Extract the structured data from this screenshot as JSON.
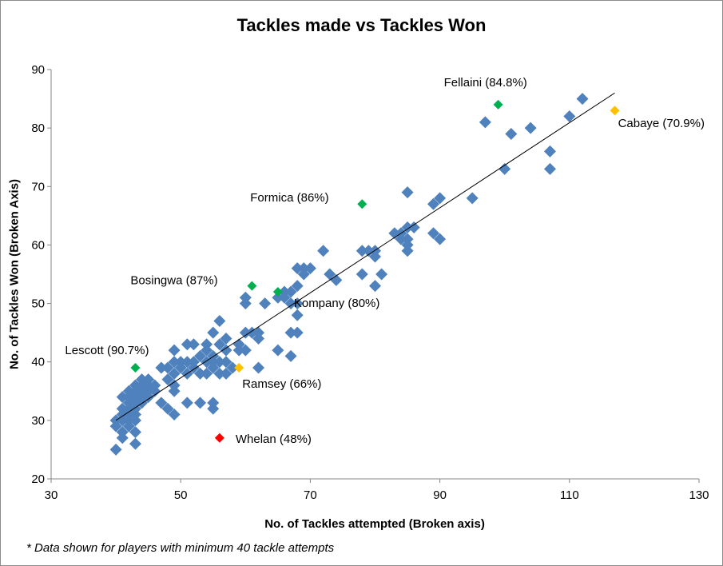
{
  "chart_data": {
    "type": "scatter",
    "title": "Tackles made vs Tackles Won",
    "xlabel": "No. of Tackles attempted (Broken axis)",
    "ylabel": "No. of Tackles Won (Broken Axis)",
    "footnote": "* Data shown for players with minimum 40 tackle attempts",
    "xlim": [
      30,
      130
    ],
    "ylim": [
      20,
      90
    ],
    "x_ticks": [
      30,
      50,
      70,
      90,
      110,
      130
    ],
    "y_ticks": [
      20,
      30,
      40,
      50,
      60,
      70,
      80,
      90
    ],
    "grid": false,
    "colors": {
      "points": "#4f81bd",
      "green": "#00b050",
      "orange": "#ffc000",
      "red": "#ff0000",
      "trendline": "#000000"
    },
    "trendline": {
      "x": [
        40,
        117
      ],
      "y": [
        30,
        86
      ]
    },
    "points": [
      [
        40,
        25
      ],
      [
        40,
        29
      ],
      [
        40,
        30
      ],
      [
        41,
        27
      ],
      [
        41,
        28
      ],
      [
        41,
        30
      ],
      [
        41,
        31
      ],
      [
        41,
        32
      ],
      [
        41,
        34
      ],
      [
        42,
        29
      ],
      [
        42,
        30
      ],
      [
        42,
        31
      ],
      [
        42,
        32
      ],
      [
        42,
        33
      ],
      [
        42,
        34
      ],
      [
        42,
        35
      ],
      [
        43,
        26
      ],
      [
        43,
        28
      ],
      [
        43,
        30
      ],
      [
        43,
        31
      ],
      [
        43,
        32
      ],
      [
        43,
        33
      ],
      [
        43,
        34
      ],
      [
        43,
        35
      ],
      [
        43,
        36
      ],
      [
        44,
        33
      ],
      [
        44,
        34
      ],
      [
        44,
        35
      ],
      [
        44,
        36
      ],
      [
        44,
        37
      ],
      [
        45,
        34
      ],
      [
        45,
        35
      ],
      [
        45,
        36
      ],
      [
        45,
        37
      ],
      [
        46,
        35
      ],
      [
        46,
        36
      ],
      [
        47,
        33
      ],
      [
        47,
        39
      ],
      [
        48,
        32
      ],
      [
        48,
        37
      ],
      [
        48,
        39
      ],
      [
        49,
        31
      ],
      [
        49,
        35
      ],
      [
        49,
        36
      ],
      [
        49,
        38
      ],
      [
        49,
        40
      ],
      [
        49,
        42
      ],
      [
        50,
        39
      ],
      [
        50,
        40
      ],
      [
        51,
        33
      ],
      [
        51,
        38
      ],
      [
        51,
        40
      ],
      [
        51,
        43
      ],
      [
        52,
        39
      ],
      [
        52,
        40
      ],
      [
        52,
        43
      ],
      [
        53,
        33
      ],
      [
        53,
        38
      ],
      [
        53,
        41
      ],
      [
        54,
        38
      ],
      [
        54,
        40
      ],
      [
        54,
        42
      ],
      [
        54,
        43
      ],
      [
        55,
        32
      ],
      [
        55,
        33
      ],
      [
        55,
        39
      ],
      [
        55,
        40
      ],
      [
        55,
        41
      ],
      [
        55,
        45
      ],
      [
        56,
        38
      ],
      [
        56,
        40
      ],
      [
        56,
        43
      ],
      [
        56,
        47
      ],
      [
        57,
        38
      ],
      [
        57,
        40
      ],
      [
        57,
        42
      ],
      [
        57,
        44
      ],
      [
        58,
        39
      ],
      [
        59,
        42
      ],
      [
        59,
        43
      ],
      [
        60,
        42
      ],
      [
        60,
        45
      ],
      [
        60,
        50
      ],
      [
        60,
        51
      ],
      [
        61,
        45
      ],
      [
        62,
        39
      ],
      [
        62,
        44
      ],
      [
        62,
        45
      ],
      [
        63,
        50
      ],
      [
        65,
        42
      ],
      [
        65,
        51
      ],
      [
        66,
        51
      ],
      [
        66,
        52
      ],
      [
        67,
        41
      ],
      [
        67,
        45
      ],
      [
        67,
        50
      ],
      [
        67,
        52
      ],
      [
        68,
        45
      ],
      [
        68,
        48
      ],
      [
        68,
        50
      ],
      [
        68,
        53
      ],
      [
        68,
        56
      ],
      [
        69,
        55
      ],
      [
        69,
        56
      ],
      [
        70,
        56
      ],
      [
        72,
        59
      ],
      [
        73,
        55
      ],
      [
        74,
        54
      ],
      [
        78,
        55
      ],
      [
        78,
        59
      ],
      [
        79,
        59
      ],
      [
        80,
        53
      ],
      [
        80,
        58
      ],
      [
        80,
        59
      ],
      [
        81,
        55
      ],
      [
        83,
        62
      ],
      [
        84,
        61
      ],
      [
        84,
        62
      ],
      [
        85,
        59
      ],
      [
        85,
        60
      ],
      [
        85,
        61
      ],
      [
        85,
        63
      ],
      [
        85,
        69
      ],
      [
        86,
        63
      ],
      [
        89,
        62
      ],
      [
        89,
        67
      ],
      [
        90,
        61
      ],
      [
        90,
        68
      ],
      [
        95,
        68
      ],
      [
        97,
        81
      ],
      [
        100,
        73
      ],
      [
        101,
        79
      ],
      [
        104,
        80
      ],
      [
        107,
        73
      ],
      [
        107,
        76
      ],
      [
        110,
        82
      ],
      [
        112,
        85
      ]
    ],
    "highlights": [
      {
        "label": "Fellaini (84.8%)",
        "x": 99,
        "y": 84,
        "color": "#00b050"
      },
      {
        "label": "Cabaye (70.9%)",
        "x": 117,
        "y": 83,
        "color": "#ffc000"
      },
      {
        "label": "Formica (86%)",
        "x": 78,
        "y": 67,
        "color": "#00b050"
      },
      {
        "label": "Bosingwa (87%)",
        "x": 61,
        "y": 53,
        "color": "#00b050"
      },
      {
        "label": "Kompany (80%)",
        "x": 65,
        "y": 52,
        "color": "#00b050"
      },
      {
        "label": "Lescott (90.7%)",
        "x": 43,
        "y": 39,
        "color": "#00b050"
      },
      {
        "label": "Ramsey (66%)",
        "x": 59,
        "y": 39,
        "color": "#ffc000"
      },
      {
        "label": "Whelan (48%)",
        "x": 56,
        "y": 27,
        "color": "#ff0000"
      }
    ]
  }
}
